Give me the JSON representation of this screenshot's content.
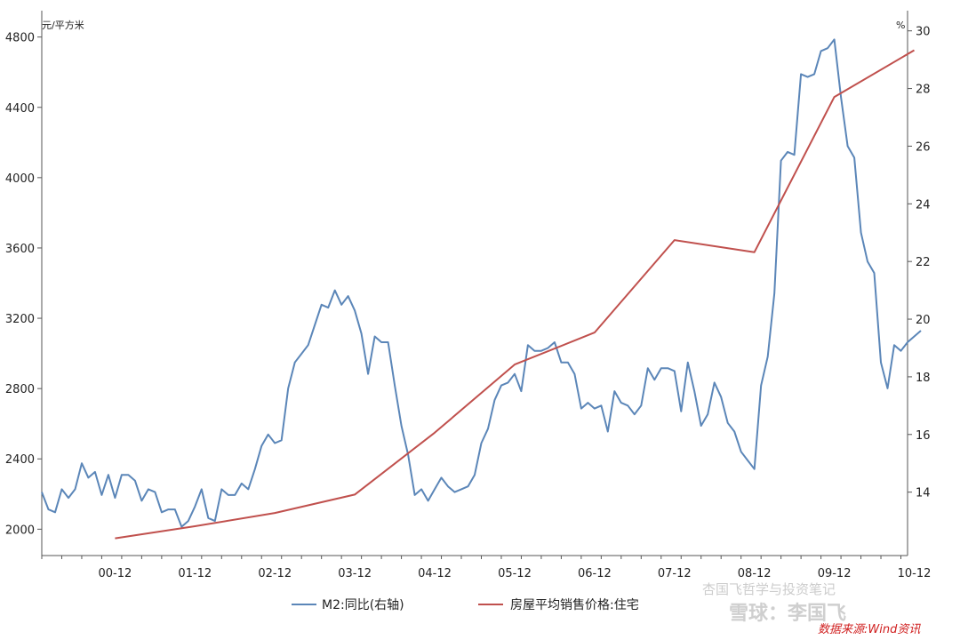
{
  "chart_data": {
    "type": "line",
    "left_axis": {
      "unit": "元/平方米",
      "ylim": [
        1850,
        4950
      ],
      "ticks": [
        2000,
        2400,
        2800,
        3200,
        3600,
        4000,
        4400,
        4800
      ]
    },
    "right_axis": {
      "unit": "%",
      "ylim": [
        11.8,
        30.7
      ],
      "ticks": [
        14,
        16,
        18,
        20,
        22,
        24,
        26,
        28,
        30
      ]
    },
    "x_axis": {
      "tick_labels": [
        "00-12",
        "01-12",
        "02-12",
        "03-12",
        "04-12",
        "05-12",
        "06-12",
        "07-12",
        "08-12",
        "09-12",
        "10-12"
      ],
      "start_month": 0,
      "end_month": 130
    },
    "series": [
      {
        "name": "M2:同比(右轴)",
        "axis": "right",
        "color": "#5b86b8",
        "values": [
          14.0,
          13.4,
          13.3,
          14.1,
          13.8,
          14.1,
          15.0,
          14.5,
          14.7,
          13.9,
          14.6,
          13.8,
          14.6,
          14.6,
          14.4,
          13.7,
          14.1,
          14.0,
          13.3,
          13.4,
          13.4,
          12.8,
          13.0,
          13.5,
          14.1,
          13.1,
          13.0,
          14.1,
          13.9,
          13.9,
          14.3,
          14.1,
          14.8,
          15.6,
          16.0,
          15.7,
          15.8,
          17.6,
          18.5,
          18.8,
          19.1,
          19.8,
          20.5,
          20.4,
          21.0,
          20.5,
          20.8,
          20.3,
          19.5,
          18.1,
          19.4,
          19.2,
          19.2,
          17.7,
          16.3,
          15.3,
          13.9,
          14.1,
          13.7,
          14.1,
          14.5,
          14.2,
          14.0,
          14.1,
          14.2,
          14.6,
          15.7,
          16.2,
          17.2,
          17.7,
          17.8,
          18.1,
          17.5,
          19.1,
          18.9,
          18.9,
          19.0,
          19.2,
          18.5,
          18.5,
          18.1,
          16.9,
          17.1,
          16.9,
          17.0,
          16.1,
          17.5,
          17.1,
          17.0,
          16.7,
          17.0,
          18.3,
          17.9,
          18.3,
          18.3,
          18.2,
          16.8,
          18.5,
          17.5,
          16.3,
          16.7,
          17.8,
          17.3,
          16.4,
          16.1,
          15.4,
          15.1,
          14.8,
          17.7,
          18.7,
          20.9,
          25.5,
          25.8,
          25.7,
          28.5,
          28.4,
          28.5,
          29.3,
          29.4,
          29.7,
          27.7,
          26.0,
          25.6,
          23.0,
          22.0,
          21.6,
          18.5,
          17.6,
          19.1,
          18.9,
          19.2,
          19.4,
          19.6
        ]
      },
      {
        "name": "房屋平均销售价格:住宅",
        "axis": "left",
        "color": "#c0504d",
        "x": [
          11,
          23,
          35,
          47,
          59,
          71,
          83,
          95,
          107,
          119,
          131
        ],
        "values": [
          1948,
          2017,
          2092,
          2197,
          2549,
          2937,
          3119,
          3645,
          3576,
          4459,
          4725
        ]
      }
    ],
    "legend_placement": "bottom",
    "grid": false
  },
  "watermark": {
    "text": "雪球：李国飞",
    "subtitle": "杏国飞哲学与投资笔记",
    "source": "数据来源:Wind资讯"
  }
}
